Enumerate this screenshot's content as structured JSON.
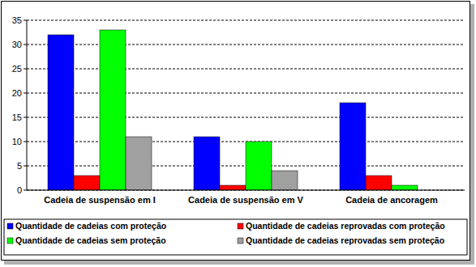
{
  "chart_data": {
    "type": "bar",
    "categories": [
      "Cadeia de suspensão em I",
      "Cadeia de suspensão em V",
      "Cadeia de ancoragem"
    ],
    "series": [
      {
        "name": "Quantidade de cadeias com proteção",
        "color": "#0000ff",
        "values": [
          32,
          11,
          18
        ]
      },
      {
        "name": "Quantidade de cadeias reprovadas com proteção",
        "color": "#ff0000",
        "values": [
          3,
          1,
          3
        ]
      },
      {
        "name": "Quantidade de cadeias sem proteção",
        "color": "#00ff00",
        "values": [
          33,
          10,
          1
        ]
      },
      {
        "name": "Quantidade de cadeias reprovadas sem proteção",
        "color": "#a0a0a0",
        "values": [
          11,
          4,
          0
        ]
      }
    ],
    "ylim": [
      0,
      35
    ],
    "yticks": [
      0,
      5,
      10,
      15,
      20,
      25,
      30,
      35
    ],
    "grid": true,
    "legend": "bottom"
  }
}
